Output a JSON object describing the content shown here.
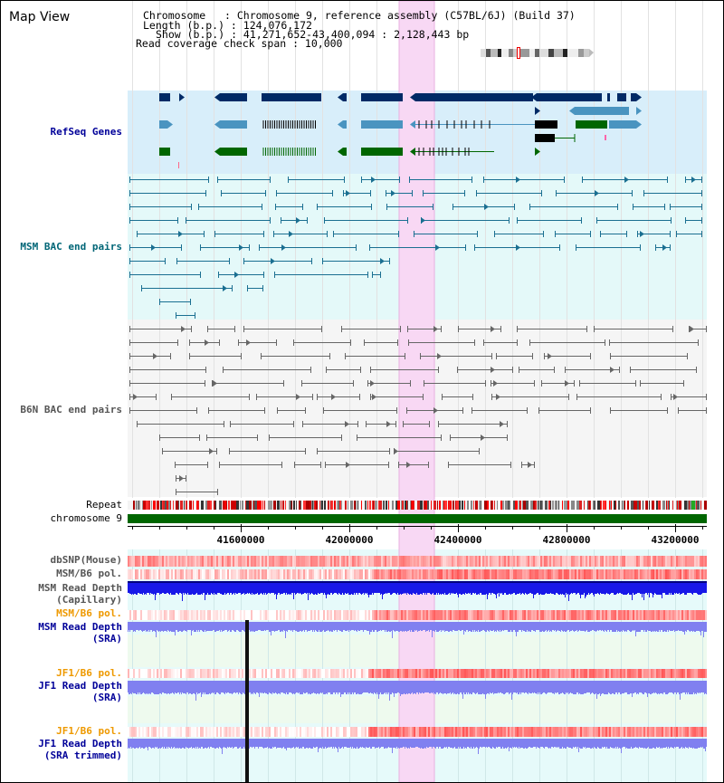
{
  "title": "Map View",
  "info": {
    "chromosome": "Chromosome   : Chromosome 9, reference assembly (C57BL/6J) (Build 37)",
    "length": "Length (b.p.) : 124,076,172",
    "show": "Show (b.p.) : 41,271,652-43,400,094 : 2,128,443 bp",
    "coverage": "Read coverage check span : 10,000"
  },
  "tracks": {
    "refseq": "RefSeq Genes",
    "msm_bac": "MSM BAC end pairs",
    "b6n_bac": "B6N BAC end pairs",
    "repeat": "Repeat",
    "chromosome": "chromosome 9",
    "dbsnp": "dbSNP(Mouse)",
    "msm_b6_pol": "MSM/B6 pol.",
    "msm_depth_cap_1": "MSM Read Depth",
    "msm_depth_cap_2": "(Capillary)",
    "msm_b6_pol_2": "MSM/B6 pol.",
    "msm_depth_sra_1": "MSM Read Depth",
    "msm_depth_sra_2": "(SRA)",
    "jf1_b6_pol": "JF1/B6 pol.",
    "jf1_depth_sra_1": "JF1 Read Depth",
    "jf1_depth_sra_2": "(SRA)",
    "jf1_b6_pol_2": "JF1/B6 pol.",
    "jf1_depth_trim_1": "JF1 Read Depth",
    "jf1_depth_trim_2": "(SRA trimmed)"
  },
  "axis": {
    "ticks": [
      "41600000",
      "42000000",
      "42400000",
      "42800000",
      "43200000"
    ],
    "range_bp": [
      41271652,
      43400094
    ]
  },
  "colors": {
    "refseq_bg": "#d8eefa",
    "msm_bg": "#e4f9f9",
    "b6n_bg": "#f5f5f5",
    "highlight": "#f8d8f4",
    "gene_dark": "#002a66",
    "gene_mid": "#4a94c0",
    "gene_green": "#006600",
    "msm_bac": "#1a6f91",
    "b6n_bac": "#666666",
    "depth_blue": "#1010e0",
    "depth_light": "#8080f0",
    "pol_red": "#ee3333",
    "label_blue": "#000099",
    "label_teal": "#006677",
    "label_gray": "#555555",
    "label_orange": "#ee9900"
  }
}
